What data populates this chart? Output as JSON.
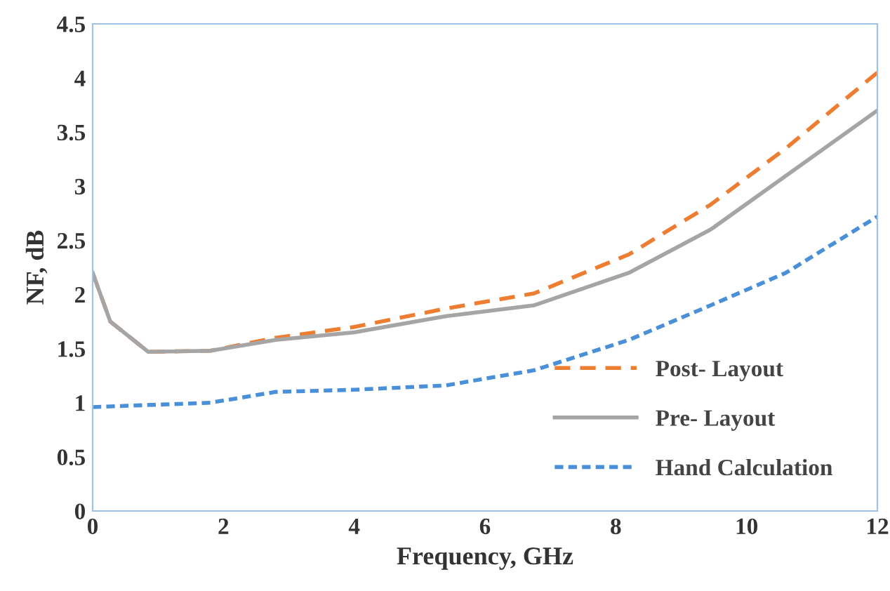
{
  "chart_data": {
    "type": "line",
    "xlabel": "Frequency, GHz",
    "ylabel": "NF, dB",
    "xlim": [
      0,
      12
    ],
    "xticks": [
      0,
      2,
      4,
      6,
      8,
      10,
      12
    ],
    "ylim": [
      0,
      4.5
    ],
    "yticks": [
      0,
      0.5,
      1,
      1.5,
      2,
      2.5,
      3,
      3.5,
      4,
      4.5
    ],
    "grid": false,
    "legend": "bottom right",
    "series": [
      {
        "name": "Post- Layout",
        "color": "#ed7d31",
        "line_style": "dashed",
        "x": [
          0,
          0.27,
          0.85,
          1.8,
          2.8,
          4,
          5.4,
          6.75,
          8.2,
          9.45,
          10.6,
          12
        ],
        "values": [
          2.2,
          1.75,
          1.47,
          1.48,
          1.6,
          1.7,
          1.87,
          2.01,
          2.37,
          2.83,
          3.35,
          4.05
        ]
      },
      {
        "name": "Pre- Layout",
        "color": "#a5a5a5",
        "line_style": "solid",
        "x": [
          0,
          0.27,
          0.85,
          1.8,
          2.8,
          4,
          5.4,
          6.75,
          8.2,
          9.45,
          12
        ],
        "values": [
          2.2,
          1.75,
          1.47,
          1.48,
          1.58,
          1.65,
          1.8,
          1.9,
          2.2,
          2.6,
          3.7
        ]
      },
      {
        "name": "Hand Calculation",
        "color": "#4a90d9",
        "line_style": "dotted",
        "x": [
          0,
          1.8,
          2.8,
          4,
          5.4,
          6.75,
          8.2,
          9.45,
          10.6,
          12
        ],
        "values": [
          0.96,
          1.0,
          1.1,
          1.12,
          1.16,
          1.3,
          1.58,
          1.9,
          2.2,
          2.72
        ]
      }
    ]
  }
}
